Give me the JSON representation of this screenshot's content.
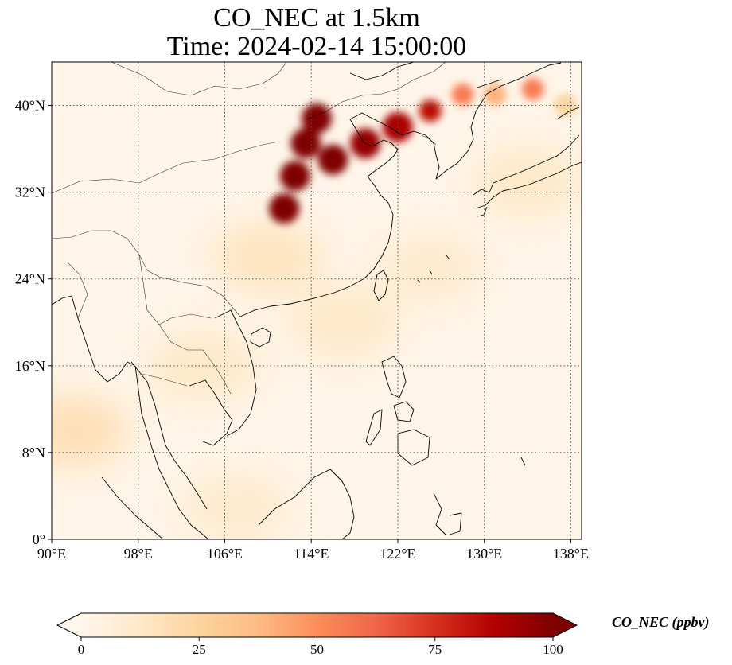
{
  "chart_data": {
    "type": "heatmap",
    "title": "CO_NEC at 1.5km",
    "subtitle": "Time: 2024-02-14 15:00:00",
    "variable": "CO_NEC",
    "colorbar_label": "CO_NEC (ppbv)",
    "colormap": "OrRd",
    "clim": [
      0,
      100
    ],
    "colorbar_ticks": [
      0,
      25,
      50,
      75,
      100
    ],
    "colorbar_extend": "both",
    "xlim": [
      90,
      139
    ],
    "ylim": [
      0,
      44
    ],
    "x_ticks": [
      90,
      98,
      106,
      114,
      122,
      130,
      138
    ],
    "x_tick_labels": [
      "90°E",
      "98°E",
      "106°E",
      "114°E",
      "122°E",
      "130°E",
      "138°E"
    ],
    "y_ticks": [
      0,
      8,
      16,
      24,
      32,
      40
    ],
    "y_tick_labels": [
      "0°",
      "8°N",
      "16°N",
      "24°N",
      "32°N",
      "40°N"
    ],
    "grid": true,
    "colors": {
      "low": "#fff7ec",
      "mid": "#fdd49e",
      "high": "#d7301f",
      "max": "#7f0000"
    },
    "plume": [
      {
        "lon": 111.5,
        "lat": 30.5,
        "value": 100
      },
      {
        "lon": 112.5,
        "lat": 33.5,
        "value": 100
      },
      {
        "lon": 113.5,
        "lat": 36.5,
        "value": 100
      },
      {
        "lon": 114.5,
        "lat": 38.8,
        "value": 100
      },
      {
        "lon": 116.0,
        "lat": 35.0,
        "value": 100
      },
      {
        "lon": 119.0,
        "lat": 36.5,
        "value": 95
      },
      {
        "lon": 122.0,
        "lat": 38.0,
        "value": 90
      },
      {
        "lon": 125.0,
        "lat": 39.5,
        "value": 85
      },
      {
        "lon": 128.0,
        "lat": 41.0,
        "value": 55
      },
      {
        "lon": 131.0,
        "lat": 41.0,
        "value": 40
      },
      {
        "lon": 134.5,
        "lat": 41.5,
        "value": 55
      },
      {
        "lon": 137.5,
        "lat": 40.0,
        "value": 25
      }
    ],
    "background_patches": [
      {
        "lon": 110.0,
        "lat": 26.0,
        "value": 15
      },
      {
        "lon": 117.0,
        "lat": 20.0,
        "value": 12
      },
      {
        "lon": 125.0,
        "lat": 25.0,
        "value": 10
      },
      {
        "lon": 92.0,
        "lat": 10.0,
        "value": 18
      },
      {
        "lon": 104.0,
        "lat": 16.0,
        "value": 12
      },
      {
        "lon": 107.0,
        "lat": 3.0,
        "value": 10
      },
      {
        "lon": 134.0,
        "lat": 33.0,
        "value": 12
      }
    ]
  }
}
